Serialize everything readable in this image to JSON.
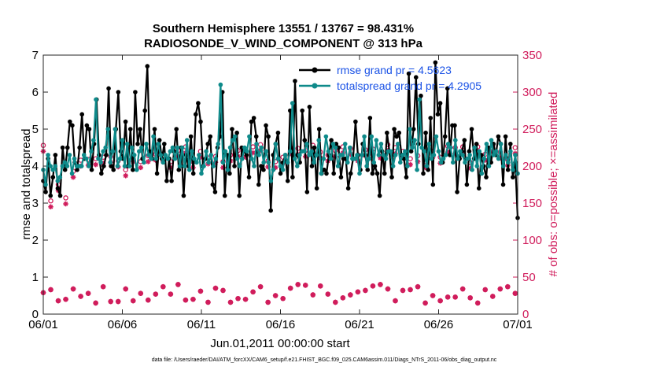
{
  "chart_data": {
    "type": "line",
    "title_line1": "Southern Hemisphere 13551 / 13767 = 98.431%",
    "title_line2": "RADIOSONDE_V_WIND_COMPONENT @ 313 hPa",
    "xlabel": "Jun.01,2011 00:00:00 start",
    "ylabel": "rmse and totalspread",
    "y2label": "# of obs: o=possible; ×=assimilated",
    "footnote": "data file: /Users/raeder/DAI/ATM_forcXX/CAM6_setup/f.e21.FHIST_BGC.f09_025.CAM6assim.011/Diags_NTrS_2011-06/obs_diag_output.nc",
    "xlim": [
      0,
      30
    ],
    "ylim": [
      0,
      7
    ],
    "y2lim": [
      0,
      350
    ],
    "xticks": [
      0,
      5,
      10,
      15,
      20,
      25,
      30
    ],
    "xtick_labels": [
      "06/01",
      "06/06",
      "06/11",
      "06/16",
      "06/21",
      "06/26",
      "07/01"
    ],
    "yticks": [
      0,
      1,
      2,
      3,
      4,
      5,
      6,
      7
    ],
    "y2ticks": [
      0,
      50,
      100,
      150,
      200,
      250,
      300,
      350
    ],
    "legend": [
      {
        "label": "rmse grand pr = 4.5623",
        "color": "#000000"
      },
      {
        "label": "totalspread grand pr = 4.2905",
        "color": "#0e8a8a"
      }
    ],
    "colors": {
      "rmse": "#000000",
      "spread": "#0e8a8a",
      "obs": "#d01c5b"
    },
    "series": [
      {
        "name": "rmse",
        "axis": "left",
        "marker": "circle",
        "values": [
          3.6,
          3.3,
          4.2,
          3.2,
          3.7,
          4.3,
          3.4,
          3.2,
          4.5,
          3.9,
          4.5,
          5.2,
          5.1,
          4.1,
          3.9,
          4.5,
          5.4,
          4.2,
          5.1,
          5.0,
          3.9,
          4.6,
          5.8,
          4.3,
          3.8,
          4.0,
          4.3,
          6.1,
          4.0,
          3.9,
          5.0,
          6.0,
          4.4,
          4.2,
          5.2,
          4.0,
          5.0,
          3.9,
          6.0,
          4.6,
          5.0,
          4.2,
          5.5,
          6.7,
          4.4,
          4.2,
          5.0,
          3.8,
          4.7,
          4.2,
          4.6,
          3.6,
          4.2,
          3.6,
          4.4,
          5.0,
          3.9,
          4.5,
          3.2,
          4.3,
          4.0,
          4.8,
          3.8,
          5.4,
          5.7,
          5.2,
          4.0,
          4.2,
          4.6,
          4.8,
          3.5,
          3.3,
          4.5,
          4.8,
          6.0,
          3.2,
          4.3,
          3.8,
          5.0,
          4.0,
          4.9,
          3.2,
          4.5,
          4.4,
          4.3,
          3.7,
          5.2,
          5.3,
          4.8,
          3.5,
          4.0,
          3.9,
          5.1,
          4.8,
          2.8,
          4.3,
          4.6,
          4.9,
          3.8,
          4.1,
          4.3,
          3.6,
          5.5,
          3.7,
          6.3,
          4.3,
          4.1,
          5.5,
          4.7,
          3.3,
          5.6,
          4.0,
          4.5,
          3.4,
          5.0,
          3.8,
          3.9,
          3.8,
          4.3,
          4.7,
          3.8,
          4.6,
          4.5,
          3.7,
          4.2,
          4.2,
          3.4,
          3.8,
          4.2,
          5.2,
          4.3,
          3.9,
          4.6,
          4.3,
          3.9,
          5.3,
          3.8,
          4.0,
          3.8,
          3.2,
          4.4,
          3.8,
          4.9,
          4.4,
          3.7,
          5.0,
          4.8,
          4.9,
          4.3,
          4.2,
          3.7,
          6.5,
          4.4,
          5.0,
          6.4,
          4.6,
          5.9,
          3.8,
          4.9,
          3.9,
          5.3,
          3.5,
          6.8,
          5.4,
          5.7,
          4.1,
          4.8,
          6.1,
          4.3,
          5.1,
          5.1,
          3.3,
          4.2,
          4.4,
          4.7,
          3.5,
          4.4,
          5.0,
          4.2,
          4.6,
          3.4,
          4.3,
          4.0,
          3.7,
          4.5,
          4.1,
          4.6,
          4.3,
          4.8,
          4.6,
          3.5,
          4.8,
          3.9,
          4.6,
          3.7,
          4.1,
          2.6
        ]
      },
      {
        "name": "totalspread",
        "axis": "left",
        "marker": "circle",
        "values": [
          3.9,
          3.5,
          4.3,
          4.0,
          3.9,
          4.0,
          3.6,
          3.7,
          4.0,
          4.1,
          4.0,
          4.3,
          3.8,
          4.2,
          4.0,
          4.0,
          4.0,
          4.3,
          4.2,
          4.0,
          4.4,
          4.7,
          5.8,
          4.2,
          4.1,
          4.4,
          4.5,
          5.0,
          4.1,
          4.4,
          5.0,
          4.0,
          4.2,
          4.7,
          4.0,
          4.6,
          4.0,
          4.5,
          4.3,
          3.9,
          4.4,
          4.5,
          4.1,
          4.6,
          4.3,
          4.2,
          4.8,
          4.2,
          4.6,
          4.3,
          4.1,
          4.3,
          4.2,
          4.4,
          4.5,
          4.2,
          4.5,
          4.0,
          4.5,
          4.0,
          4.7,
          3.9,
          4.4,
          4.2,
          4.1,
          4.3,
          3.8,
          4.0,
          4.4,
          4.1,
          4.3,
          4.0,
          4.2,
          4.6,
          6.2,
          4.1,
          4.4,
          3.9,
          4.5,
          4.7,
          4.8,
          4.2,
          4.0,
          4.2,
          4.5,
          4.4,
          4.8,
          4.2,
          4.0,
          4.6,
          4.3,
          4.5,
          4.1,
          4.4,
          4.1,
          3.6,
          3.9,
          4.6,
          4.2,
          4.0,
          3.9,
          4.3,
          4.1,
          4.4,
          5.7,
          4.2,
          4.0,
          4.3,
          4.4,
          4.4,
          4.6,
          4.3,
          4.4,
          4.1,
          4.3,
          4.7,
          3.8,
          4.2,
          4.8,
          4.4,
          4.2,
          4.6,
          4.5,
          4.0,
          4.3,
          4.3,
          4.6,
          4.1,
          4.5,
          4.2,
          4.2,
          4.3,
          3.8,
          4.3,
          4.8,
          4.0,
          4.2,
          4.8,
          4.1,
          4.7,
          4.3,
          4.6,
          4.3,
          4.2,
          4.4,
          4.4,
          4.0,
          4.3,
          4.6,
          4.1,
          4.3,
          4.4,
          4.0,
          5.0,
          4.5,
          4.7,
          3.9,
          5.8,
          4.5,
          4.4,
          4.0,
          4.6,
          4.2,
          4.3,
          4.8,
          4.4,
          4.1,
          4.2,
          4.3,
          4.6,
          4.5,
          4.1,
          4.7,
          4.2,
          4.4,
          4.3,
          4.1,
          4.2,
          4.3,
          3.9,
          4.5,
          4.0,
          4.4,
          3.8,
          4.2,
          4.6,
          4.0,
          4.7,
          4.3,
          4.4,
          4.2,
          4.6,
          4.0,
          4.3,
          4.1,
          4.4,
          3.9,
          4.3,
          3.8
        ]
      },
      {
        "name": "obs possible",
        "axis": "right",
        "marker": "o",
        "values": [
          228,
          139,
          200,
          153,
          204,
          207,
          175,
          163,
          220,
          157,
          196,
          200,
          193,
          169,
          167,
          208,
          207,
          208,
          209,
          202,
          197,
          210,
          198,
          224,
          212,
          205,
          205,
          213,
          202,
          214,
          207,
          218,
          223,
          195,
          216,
          201,
          214,
          216,
          229,
          206,
          223,
          196,
          214,
          220,
          216,
          216,
          214,
          205,
          214,
          205,
          218,
          206,
          205,
          224,
          221,
          213,
          216,
          226,
          225,
          214,
          206,
          220,
          211,
          220,
          206,
          211,
          211,
          219,
          209,
          213,
          207,
          211,
          206,
          209,
          216,
          215,
          228,
          206,
          221,
          224,
          200,
          220,
          221,
          206,
          226,
          212,
          223,
          229,
          211,
          218,
          207,
          213,
          225,
          206,
          216,
          217,
          212,
          228,
          227,
          225,
          220,
          224,
          224,
          231,
          216,
          221,
          226,
          222,
          228,
          226,
          218,
          219,
          205,
          203,
          215,
          218,
          201,
          221,
          204,
          218,
          226,
          226,
          224,
          224,
          219,
          229,
          215,
          221,
          219,
          222,
          204,
          223,
          223,
          210,
          215,
          219,
          212,
          223,
          229,
          210,
          222,
          225,
          221,
          226,
          220,
          207,
          229,
          210,
          220,
          216,
          214,
          202,
          223,
          206,
          221,
          225,
          220,
          228,
          220,
          212,
          213,
          223,
          227,
          225,
          227,
          225,
          207,
          223,
          226,
          220,
          220,
          205,
          216,
          224,
          226,
          222,
          227,
          216,
          218,
          213,
          228,
          221,
          227,
          219,
          217,
          229,
          209,
          226,
          211,
          225,
          217
        ]
      },
      {
        "name": "obs assimilated",
        "axis": "right",
        "marker": "*",
        "values": [
          29,
          38,
          16,
          33,
          22,
          19,
          18,
          37,
          16,
          20,
          18,
          17,
          34,
          18,
          21,
          24,
          27,
          35,
          28,
          23,
          22,
          15,
          39,
          26,
          37,
          22,
          39,
          17,
          23,
          25,
          17,
          38,
          32,
          34,
          16,
          32,
          18,
          22,
          20,
          28,
          36,
          17,
          19,
          23,
          33,
          27,
          39,
          18,
          37,
          34,
          18,
          27,
          17,
          25,
          40,
          25,
          40,
          19,
          18,
          25,
          20,
          16,
          25,
          31,
          17,
          22,
          16,
          33,
          39,
          35,
          20,
          25,
          32,
          38,
          39,
          16,
          38,
          19,
          21,
          18,
          35,
          20,
          29,
          35,
          30,
          28,
          16,
          37,
          17,
          37,
          16,
          30,
          33,
          25,
          38,
          34,
          21,
          21,
          30,
          35,
          38,
          15,
          40,
          25,
          37,
          39,
          32,
          17,
          26,
          20,
          20,
          38,
          18,
          21,
          27,
          39,
          40,
          16,
          34,
          29,
          22,
          39,
          39,
          26,
          18,
          35,
          30,
          36,
          40,
          32,
          16,
          18,
          38,
          34,
          16,
          40,
          25,
          31,
          34,
          31,
          17,
          18,
          19,
          34,
          32,
          24,
          25,
          33,
          26,
          24,
          37,
          31,
          24,
          15,
          19,
          27,
          25,
          20,
          30,
          18,
          38,
          38,
          23,
          27,
          36,
          23,
          31,
          23,
          34,
          19,
          35,
          22,
          25,
          31,
          15,
          27,
          22,
          33,
          34,
          39,
          24,
          39,
          28,
          34,
          21,
          35,
          37,
          30,
          39,
          28,
          35
        ]
      }
    ]
  }
}
